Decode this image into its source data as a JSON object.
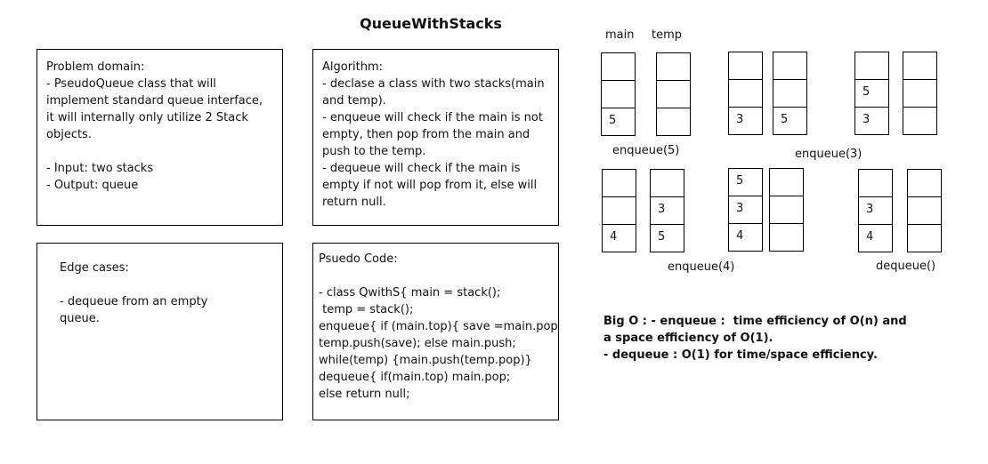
{
  "title": "QueueWithStacks",
  "problem": {
    "lines": [
      "Problem domain:",
      "- PseudoQueue class that will",
      "implement standard queue interface,",
      "it will internally only utilize 2 Stack",
      "objects.",
      "",
      "- Input: two stacks",
      "- Output: queue"
    ]
  },
  "algorithm": {
    "lines": [
      "Algorithm:",
      "- declase a class with two stacks(main",
      "and temp).",
      "- enqueue will check if the main is not",
      "empty, then pop from the main and",
      "push to the temp.",
      "- dequeue will check if the main is",
      "empty if not will pop from it, else will",
      "return null."
    ]
  },
  "edge": {
    "lines": [
      "Edge cases:",
      "",
      "- dequeue from an empty",
      "queue."
    ]
  },
  "pseudo": {
    "lines": [
      "Psuedo Code:",
      "",
      "- class QwithS{ main = stack();",
      " temp = stack();",
      "enqueue{ if (main.top){ save =main.pop",
      "temp.push(save); else main.push;",
      "while(temp) {main.push(temp.pop)}",
      "dequeue{ if(main.top) main.pop;",
      "else return null;"
    ]
  },
  "stack_headers": {
    "main": "main",
    "temp": "temp"
  },
  "stacks": [
    {
      "id": "s1",
      "cells": [
        "",
        "",
        "5"
      ]
    },
    {
      "id": "s2",
      "cells": [
        "",
        "",
        ""
      ]
    },
    {
      "id": "s3",
      "cells": [
        "",
        "",
        "3"
      ]
    },
    {
      "id": "s4",
      "cells": [
        "",
        "",
        "5"
      ]
    },
    {
      "id": "s5",
      "cells": [
        "",
        "5",
        "3"
      ]
    },
    {
      "id": "s6",
      "cells": [
        "",
        "",
        ""
      ]
    },
    {
      "id": "s7",
      "cells": [
        "",
        "",
        "4"
      ]
    },
    {
      "id": "s8",
      "cells": [
        "",
        "3",
        "5"
      ]
    },
    {
      "id": "s9",
      "cells": [
        "5",
        "3",
        "4"
      ]
    },
    {
      "id": "s10",
      "cells": [
        "",
        "",
        ""
      ]
    },
    {
      "id": "s11",
      "cells": [
        "",
        "3",
        "4"
      ]
    },
    {
      "id": "s12",
      "cells": [
        "",
        "",
        ""
      ]
    }
  ],
  "operations": [
    "enqueue(5)",
    "enqueue(3)",
    "enqueue(4)",
    "dequeue()"
  ],
  "bigo": {
    "lines": [
      "Big O : - enqueue :  time efficiency of O(n) and",
      "a space efficiency of O(1).",
      "- dequeue : O(1) for time/space efficiency."
    ]
  }
}
